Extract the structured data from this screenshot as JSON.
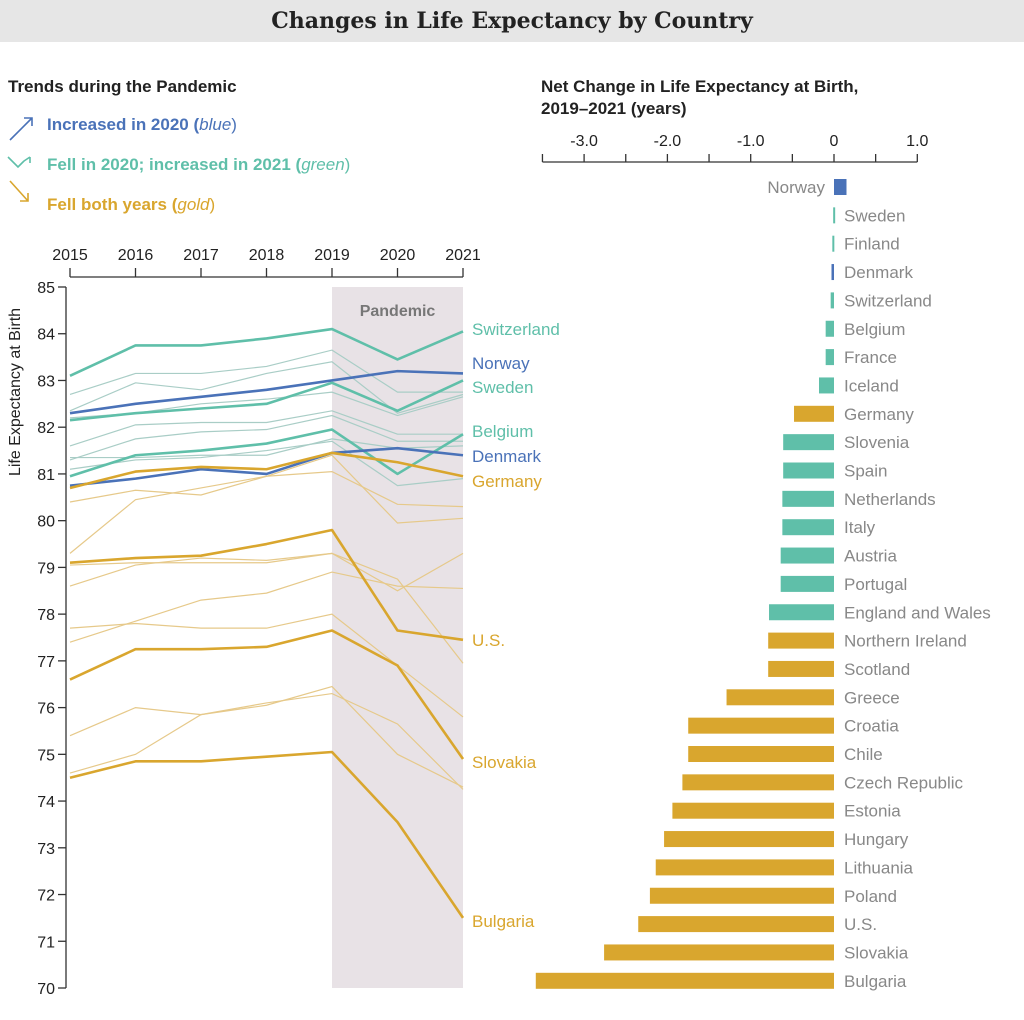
{
  "title": "Changes in Life Expectancy by Country",
  "colors": {
    "blue": "#4a72b8",
    "green": "#5fbfa9",
    "gold": "#d9a62e",
    "green_thin": "#a9cdc6",
    "gold_thin": "#e6c98a",
    "pandemic_band": "#e8e2e6",
    "title_bar": "#e6e6e6"
  },
  "legend": {
    "heading": "Trends during the Pandemic",
    "items": [
      {
        "label": "Increased in 2020",
        "note": "blue",
        "color_key": "blue",
        "icon": "arrow-up-right-icon"
      },
      {
        "label": "Fell in 2020; increased in 2021",
        "note": "green",
        "color_key": "green",
        "icon": "dip-then-rise-icon"
      },
      {
        "label": "Fell both years",
        "note": "gold",
        "color_key": "gold",
        "icon": "arrow-down-right-icon"
      }
    ]
  },
  "chart_data": [
    {
      "type": "line",
      "ylabel": "Life Expectancy at Birth",
      "x": [
        "2015",
        "2016",
        "2017",
        "2018",
        "2019",
        "2020",
        "2021"
      ],
      "ylim": [
        70,
        85
      ],
      "yticks": [
        "70",
        "71",
        "72",
        "73",
        "74",
        "75",
        "76",
        "77",
        "78",
        "79",
        "80",
        "81",
        "82",
        "83",
        "84",
        "85"
      ],
      "x_axis_position": "top",
      "annotation": "Pandemic",
      "annotation_range": [
        "2019",
        "2021"
      ],
      "grid": false,
      "series": [
        {
          "name": "Switzerland",
          "group": "green",
          "values": [
            83.1,
            83.75,
            83.75,
            83.9,
            84.1,
            83.45,
            84.05
          ]
        },
        {
          "name": "Norway",
          "group": "blue",
          "values": [
            82.3,
            82.5,
            82.65,
            82.8,
            83.0,
            83.2,
            83.15
          ]
        },
        {
          "name": "Sweden",
          "group": "green",
          "values": [
            82.15,
            82.3,
            82.4,
            82.5,
            82.95,
            82.35,
            83.0
          ]
        },
        {
          "name": "Belgium",
          "group": "green",
          "values": [
            80.95,
            81.4,
            81.5,
            81.65,
            81.95,
            81.0,
            81.85
          ]
        },
        {
          "name": "Denmark",
          "group": "blue",
          "values": [
            80.75,
            80.9,
            81.1,
            81.0,
            81.45,
            81.55,
            81.4
          ]
        },
        {
          "name": "Germany",
          "group": "gold",
          "values": [
            80.7,
            81.05,
            81.15,
            81.1,
            81.45,
            81.25,
            80.95
          ]
        },
        {
          "name": "U.S.",
          "group": "gold",
          "values": [
            79.1,
            79.2,
            79.25,
            79.5,
            79.8,
            77.65,
            77.45
          ]
        },
        {
          "name": "Slovakia",
          "group": "gold",
          "values": [
            76.6,
            77.25,
            77.25,
            77.3,
            77.65,
            76.9,
            74.9
          ]
        },
        {
          "name": "Bulgaria",
          "group": "gold",
          "values": [
            74.5,
            74.85,
            74.85,
            74.95,
            75.05,
            73.55,
            71.5
          ]
        }
      ],
      "background_series": [
        {
          "group": "green",
          "values": [
            82.7,
            83.15,
            83.15,
            83.3,
            83.65,
            82.75,
            82.75
          ]
        },
        {
          "group": "green",
          "values": [
            82.35,
            82.95,
            82.8,
            83.15,
            83.4,
            82.3,
            82.7
          ]
        },
        {
          "group": "green",
          "values": [
            82.2,
            82.3,
            82.5,
            82.6,
            82.75,
            82.25,
            82.65
          ]
        },
        {
          "group": "green",
          "values": [
            81.6,
            82.05,
            82.1,
            82.1,
            82.35,
            81.85,
            81.85
          ]
        },
        {
          "group": "green",
          "values": [
            81.3,
            81.75,
            81.9,
            81.95,
            82.25,
            81.7,
            81.7
          ]
        },
        {
          "group": "green",
          "values": [
            81.35,
            81.35,
            81.4,
            81.4,
            81.75,
            81.55,
            81.6
          ]
        },
        {
          "group": "green",
          "values": [
            81.1,
            81.3,
            81.35,
            81.5,
            81.7,
            80.75,
            80.9
          ]
        },
        {
          "group": "gold",
          "values": [
            80.4,
            80.65,
            80.55,
            80.95,
            81.05,
            80.35,
            80.3
          ]
        },
        {
          "group": "gold",
          "values": [
            79.3,
            80.45,
            80.7,
            80.95,
            81.4,
            79.95,
            80.05
          ]
        },
        {
          "group": "gold",
          "values": [
            79.05,
            79.1,
            79.1,
            79.1,
            79.3,
            78.75,
            76.95
          ]
        },
        {
          "group": "gold",
          "values": [
            78.6,
            79.05,
            79.2,
            79.15,
            79.3,
            78.5,
            79.3
          ]
        },
        {
          "group": "gold",
          "values": [
            77.4,
            77.85,
            78.3,
            78.45,
            78.9,
            78.6,
            78.55
          ]
        },
        {
          "group": "gold",
          "values": [
            77.7,
            77.8,
            77.7,
            77.7,
            78.0,
            76.9,
            75.8
          ]
        },
        {
          "group": "gold",
          "values": [
            75.4,
            76.0,
            75.85,
            76.05,
            76.45,
            75.0,
            74.3
          ]
        },
        {
          "group": "gold",
          "values": [
            74.6,
            75.0,
            75.85,
            76.1,
            76.3,
            75.65,
            74.25
          ]
        }
      ]
    },
    {
      "type": "bar",
      "orientation": "horizontal",
      "title": "Net Change in Life Expectancy at Birth, 2019–2021 (years)",
      "title_lines": [
        "Net Change in Life Expectancy at Birth,",
        "2019–2021 (years)"
      ],
      "xlim": [
        -3.5,
        1.0
      ],
      "xticks": [
        "-3.0",
        "-2.0",
        "-1.0",
        "0",
        "1.0"
      ],
      "x_axis_position": "top",
      "categories": [
        "Norway",
        "Sweden",
        "Finland",
        "Denmark",
        "Switzerland",
        "Belgium",
        "France",
        "Iceland",
        "Germany",
        "Slovenia",
        "Spain",
        "Netherlands",
        "Italy",
        "Austria",
        "Portugal",
        "England and Wales",
        "Northern Ireland",
        "Scotland",
        "Greece",
        "Croatia",
        "Chile",
        "Czech Republic",
        "Estonia",
        "Hungary",
        "Lithuania",
        "Poland",
        "U.S.",
        "Slovakia",
        "Bulgaria"
      ],
      "groups": [
        "blue",
        "green",
        "green",
        "blue",
        "green",
        "green",
        "green",
        "green",
        "gold",
        "green",
        "green",
        "green",
        "green",
        "green",
        "green",
        "green",
        "gold",
        "gold",
        "gold",
        "gold",
        "gold",
        "gold",
        "gold",
        "gold",
        "gold",
        "gold",
        "gold",
        "gold",
        "gold"
      ],
      "values": [
        0.15,
        -0.01,
        -0.02,
        -0.03,
        -0.04,
        -0.1,
        -0.1,
        -0.18,
        -0.48,
        -0.61,
        -0.61,
        -0.62,
        -0.62,
        -0.64,
        -0.64,
        -0.78,
        -0.79,
        -0.79,
        -1.29,
        -1.75,
        -1.75,
        -1.82,
        -1.94,
        -2.04,
        -2.14,
        -2.21,
        -2.35,
        -2.76,
        -3.58
      ]
    }
  ]
}
